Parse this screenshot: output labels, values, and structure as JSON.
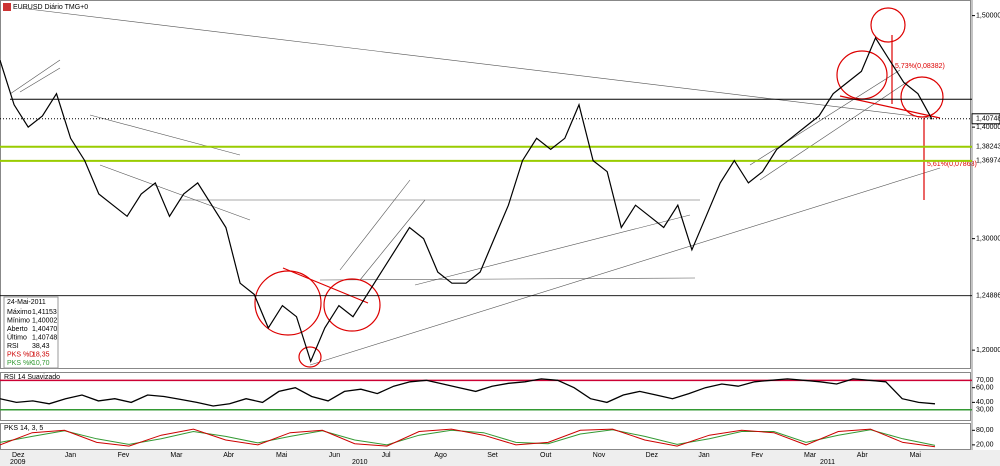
{
  "title": "EURUSD Diário TMG+0",
  "price_axis": {
    "ylim": [
      1.184,
      1.514
    ],
    "ticks": [
      {
        "value": 1.5,
        "label": "1,50000"
      },
      {
        "value": 1.4,
        "label": "1,40000"
      },
      {
        "value": 1.3,
        "label": "1,30000"
      },
      {
        "value": 1.2,
        "label": "1,20000"
      }
    ],
    "last_price": {
      "value": 1.40748,
      "label": "1,40748"
    },
    "resistance": 1.425,
    "support_levels": [
      {
        "value": 1.38243,
        "label": "1,38243"
      },
      {
        "value": 1.36974,
        "label": "1,36974"
      }
    ],
    "low_level": {
      "value": 1.24886,
      "label": "1,24886"
    }
  },
  "price_values": [
    1.46,
    1.42,
    1.4,
    1.41,
    1.43,
    1.39,
    1.37,
    1.34,
    1.33,
    1.32,
    1.34,
    1.35,
    1.32,
    1.34,
    1.35,
    1.33,
    1.31,
    1.26,
    1.25,
    1.22,
    1.24,
    1.23,
    1.19,
    1.22,
    1.24,
    1.23,
    1.25,
    1.27,
    1.29,
    1.31,
    1.3,
    1.27,
    1.26,
    1.26,
    1.27,
    1.3,
    1.33,
    1.37,
    1.39,
    1.38,
    1.39,
    1.42,
    1.37,
    1.36,
    1.31,
    1.33,
    1.32,
    1.31,
    1.33,
    1.29,
    1.32,
    1.35,
    1.37,
    1.35,
    1.36,
    1.38,
    1.39,
    1.4,
    1.41,
    1.43,
    1.44,
    1.45,
    1.48,
    1.46,
    1.44,
    1.43,
    1.407
  ],
  "annotations": [
    "5,73%(0,08382)",
    "5,61%(0,07863)"
  ],
  "info": {
    "date": "24-Mai-2011",
    "rows": [
      [
        "Máximo",
        "1,41153"
      ],
      [
        "Mínimo",
        "1,40002"
      ],
      [
        "Aberto",
        "1,40470"
      ],
      [
        "Último",
        "1,40748"
      ],
      [
        "RSI",
        "38,43"
      ],
      [
        "PKS %D",
        "18,35"
      ],
      [
        "PKS %K",
        "10,70"
      ]
    ]
  },
  "rsi": {
    "label": "RSI 14 Suavizado",
    "ylim": [
      16,
      80
    ],
    "ticks": [
      {
        "value": 70,
        "label": "70,00"
      },
      {
        "value": 60,
        "label": "60,00"
      },
      {
        "value": 40,
        "label": "40,00"
      },
      {
        "value": 30,
        "label": "30,00"
      }
    ],
    "values": [
      45,
      40,
      42,
      38,
      45,
      50,
      42,
      45,
      40,
      50,
      48,
      44,
      40,
      35,
      38,
      45,
      40,
      55,
      60,
      48,
      42,
      55,
      58,
      52,
      62,
      68,
      70,
      65,
      60,
      55,
      62,
      66,
      68,
      72,
      70,
      60,
      45,
      40,
      50,
      55,
      50,
      45,
      52,
      60,
      65,
      62,
      68,
      70,
      72,
      70,
      68,
      65,
      72,
      70,
      68,
      45,
      40,
      38
    ]
  },
  "pks": {
    "label": "PKS 14, 3, 5",
    "ylim": [
      3,
      106
    ],
    "ticks": [
      {
        "value": 80,
        "label": "80,00"
      },
      {
        "value": 20,
        "label": "20,00"
      }
    ],
    "k": [
      20,
      70,
      80,
      30,
      15,
      60,
      85,
      40,
      20,
      70,
      80,
      25,
      15,
      75,
      85,
      60,
      20,
      30,
      80,
      85,
      40,
      15,
      60,
      80,
      70,
      20,
      75,
      85,
      30,
      12
    ],
    "d": [
      30,
      55,
      78,
      45,
      22,
      45,
      75,
      55,
      28,
      55,
      78,
      40,
      20,
      60,
      80,
      70,
      30,
      25,
      65,
      82,
      55,
      22,
      45,
      75,
      75,
      30,
      60,
      82,
      45,
      18
    ]
  },
  "months": [
    "Dez",
    "Jan",
    "Fev",
    "Mar",
    "Abr",
    "Mai",
    "Jun",
    "Jul",
    "Ago",
    "Set",
    "Out",
    "Nov",
    "Dez",
    "Jan",
    "Fev",
    "Mar",
    "Abr",
    "Mai"
  ],
  "years": [
    "2009",
    "2010",
    "2011"
  ]
}
